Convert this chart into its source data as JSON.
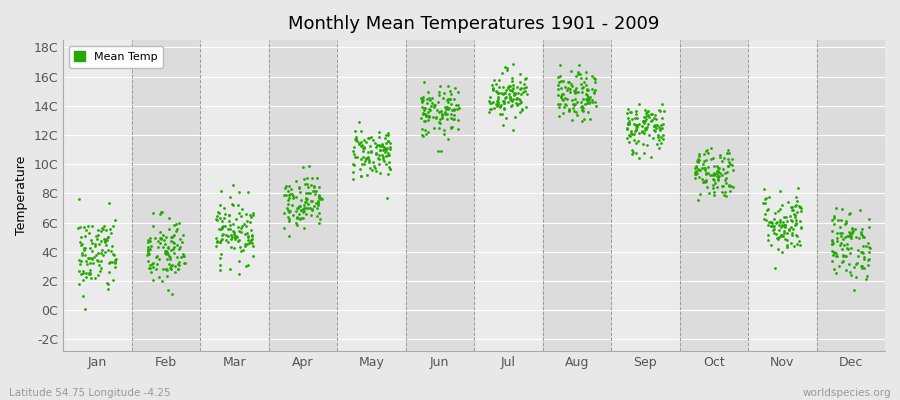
{
  "title": "Monthly Mean Temperatures 1901 - 2009",
  "ylabel": "Temperature",
  "bottom_left_label": "Latitude 54.75 Longitude -4.25",
  "bottom_right_label": "worldspecies.org",
  "legend_label": "Mean Temp",
  "dot_color": "#22aa00",
  "background_color": "#e8e8e8",
  "band_color_light": "#ebebeb",
  "band_color_dark": "#dcdcdc",
  "grid_line_color": "#cccccc",
  "months": [
    "Jan",
    "Feb",
    "Mar",
    "Apr",
    "May",
    "Jun",
    "Jul",
    "Aug",
    "Sep",
    "Oct",
    "Nov",
    "Dec"
  ],
  "ylim": [
    -2.8,
    18.5
  ],
  "yticks": [
    -2,
    0,
    2,
    4,
    6,
    8,
    10,
    12,
    14,
    16,
    18
  ],
  "ytick_labels": [
    "-2C",
    "0C",
    "2C",
    "4C",
    "6C",
    "8C",
    "10C",
    "12C",
    "14C",
    "16C",
    "18C"
  ],
  "num_years": 109,
  "seed": 42,
  "month_mean_temps": [
    3.8,
    3.9,
    5.5,
    7.5,
    10.8,
    13.5,
    14.8,
    14.6,
    12.5,
    9.5,
    6.0,
    4.5
  ],
  "month_std_temps": [
    1.4,
    1.3,
    1.1,
    0.9,
    0.9,
    0.9,
    0.85,
    0.85,
    0.9,
    0.9,
    1.1,
    1.2
  ]
}
